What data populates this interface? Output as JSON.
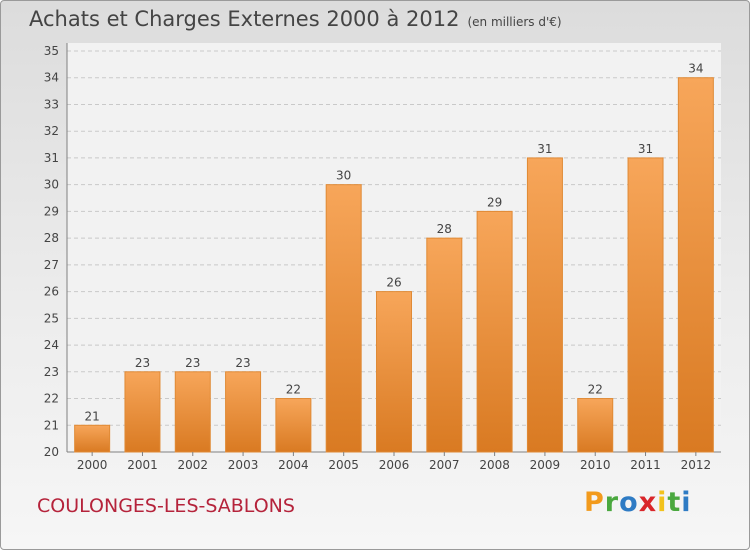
{
  "header": {
    "title": "Achats et Charges Externes 2000 à 2012",
    "unit": "(en milliers d'€)"
  },
  "footer": {
    "commune": "COULONGES-LES-SABLONS",
    "logo_letters": [
      "P",
      "r",
      "o",
      "x",
      "i",
      "t",
      "i"
    ],
    "logo_colors": [
      "#f29a1c",
      "#4aa83f",
      "#2e7bc4",
      "#d9262a",
      "#f2c21c",
      "#4aa83f",
      "#2e7bc4"
    ]
  },
  "colors": {
    "bar_top": "#f7a65a",
    "bar_bottom": "#d97a22",
    "bar_edge": "#e08a35",
    "grid": "#c9c9c9",
    "axis": "#808080",
    "text": "#444444"
  },
  "chart_data": {
    "type": "bar",
    "title": "Achats et Charges Externes 2000 à 2012",
    "categories": [
      "2000",
      "2001",
      "2002",
      "2003",
      "2004",
      "2005",
      "2006",
      "2007",
      "2008",
      "2009",
      "2010",
      "2011",
      "2012"
    ],
    "values": [
      21,
      23,
      23,
      23,
      22,
      30,
      26,
      28,
      29,
      31,
      22,
      31,
      34
    ],
    "ylim": [
      20,
      35
    ],
    "yticks": [
      20,
      21,
      22,
      23,
      24,
      25,
      26,
      27,
      28,
      29,
      30,
      31,
      32,
      33,
      34,
      35
    ],
    "grid": true,
    "data_labels": true
  }
}
